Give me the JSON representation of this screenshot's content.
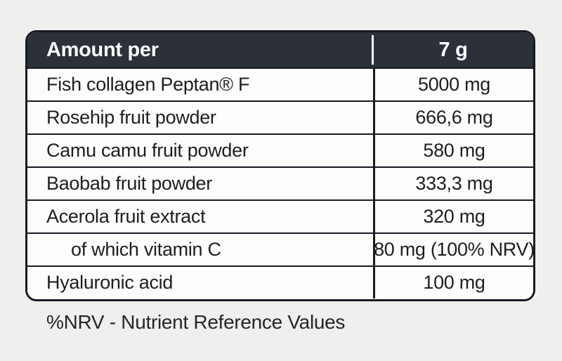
{
  "page": {
    "background_color": "#efefee"
  },
  "table": {
    "colors": {
      "header_background": "#2b3039",
      "header_text": "#ffffff",
      "border": "#171b21",
      "row_background": "#fdfdfc",
      "row_text": "#1e1e1e"
    },
    "header": {
      "label": "Amount per",
      "amount": "7 g"
    },
    "rows": [
      {
        "name": "Fish collagen Peptan® F",
        "value": "5000 mg",
        "indent": false
      },
      {
        "name": "Rosehip fruit powder",
        "value": "666,6 mg",
        "indent": false
      },
      {
        "name": "Camu camu fruit powder",
        "value": "580 mg",
        "indent": false
      },
      {
        "name": "Baobab fruit powder",
        "value": "333,3 mg",
        "indent": false
      },
      {
        "name": "Acerola fruit extract",
        "value": "320 mg",
        "indent": false
      },
      {
        "name": "of which vitamin C",
        "value": "80 mg (100% NRV)",
        "indent": true
      },
      {
        "name": "Hyaluronic acid",
        "value": "100 mg",
        "indent": false
      }
    ]
  },
  "footnote": "%NRV - Nutrient Reference Values"
}
